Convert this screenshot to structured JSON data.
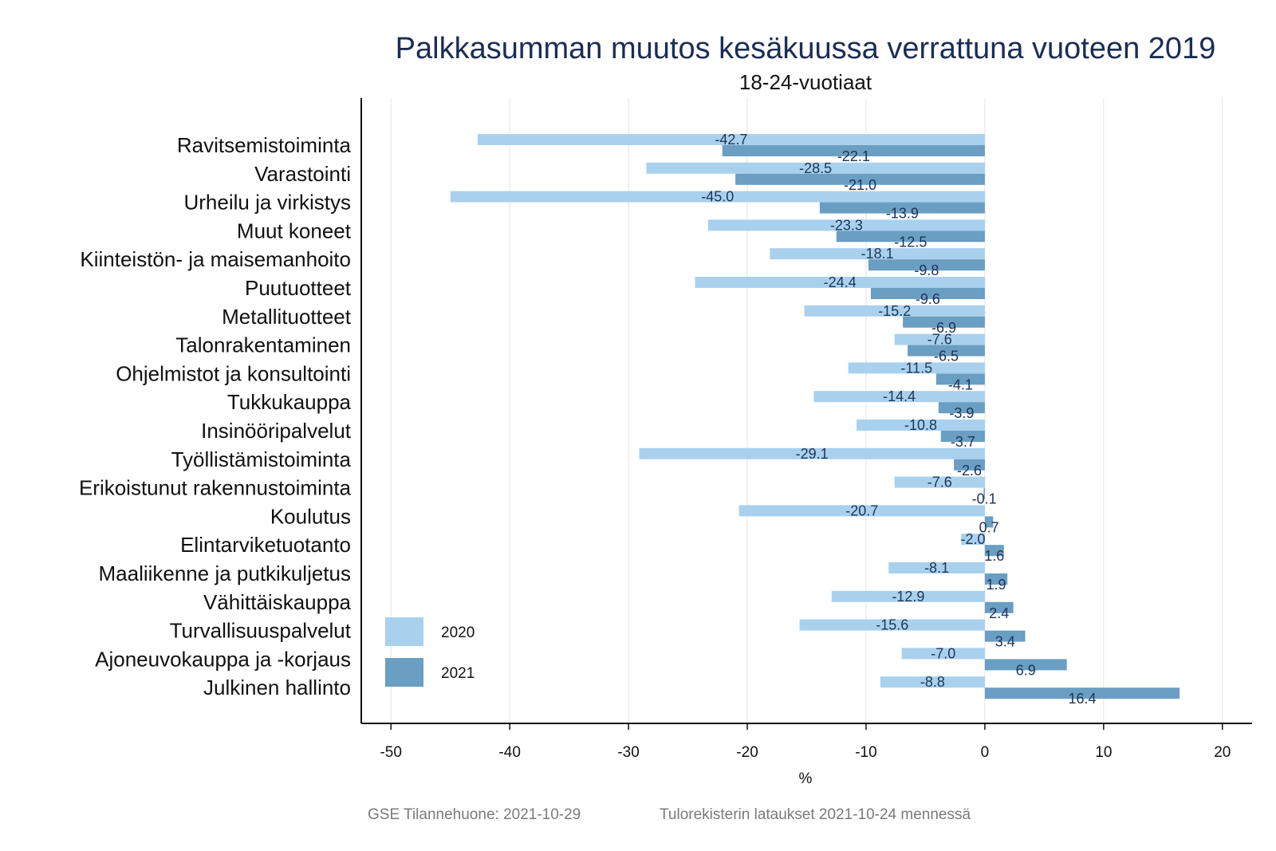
{
  "chart_data": {
    "type": "bar",
    "orientation": "horizontal",
    "title": "Palkkasumman muutos kesäkuussa verrattuna vuoteen 2019",
    "subtitle": "18-24-vuotiaat",
    "xlabel": "%",
    "xlim": [
      -52.5,
      22.5
    ],
    "xticks": [
      -50,
      -40,
      -30,
      -20,
      -10,
      0,
      10,
      20
    ],
    "grid": true,
    "legend_position": "bottom-left",
    "categories": [
      "Ravitsemistoiminta",
      "Varastointi",
      "Urheilu ja virkistys",
      "Muut koneet",
      "Kiinteistön- ja maisemanhoito",
      "Puutuotteet",
      "Metallituotteet",
      "Talonrakentaminen",
      "Ohjelmistot ja konsultointi",
      "Tukkukauppa",
      "Insinööripalvelut",
      "Työllistämistoiminta",
      "Erikoistunut rakennustoiminta",
      "Koulutus",
      "Elintarviketuotanto",
      "Maaliikenne ja putkikuljetus",
      "Vähittäiskauppa",
      "Turvallisuuspalvelut",
      "Ajoneuvokauppa ja -korjaus",
      "Julkinen hallinto"
    ],
    "series": [
      {
        "name": "2020",
        "color": "#a9d1ee",
        "values": [
          -42.7,
          -28.5,
          -45.0,
          -23.3,
          -18.1,
          -24.4,
          -15.2,
          -7.6,
          -11.5,
          -14.4,
          -10.8,
          -29.1,
          -7.6,
          -20.7,
          -2.0,
          -8.1,
          -12.9,
          -15.6,
          -7.0,
          -8.8
        ],
        "labels": [
          "-42.7",
          "-28.5",
          "-45.0",
          "-23.3",
          "-18.1",
          "-24.4",
          "-15.2",
          "-7.6",
          "-11.5",
          "-14.4",
          "-10.8",
          "-29.1",
          "-7.6",
          "-20.7",
          "-2.0",
          "-8.1",
          "-12.9",
          "-15.6",
          "-7.0",
          "-8.8"
        ]
      },
      {
        "name": "2021",
        "color": "#6a9ec2",
        "values": [
          -22.1,
          -21.0,
          -13.9,
          -12.5,
          -9.8,
          -9.6,
          -6.9,
          -6.5,
          -4.1,
          -3.9,
          -3.7,
          -2.6,
          -0.1,
          0.7,
          1.6,
          1.9,
          2.4,
          3.4,
          6.9,
          16.4
        ],
        "labels": [
          "-22.1",
          "-21.0",
          "-13.9",
          "-12.5",
          "-9.8",
          "-9.6",
          "-6.9",
          "-6.5",
          "-4.1",
          "-3.9",
          "-3.7",
          "-2.6",
          "-0.1",
          "0.7",
          "1.6",
          "1.9",
          "2.4",
          "3.4",
          "6.9",
          "16.4"
        ]
      }
    ]
  },
  "footer": {
    "source": "GSE Tilannehuone: 2021-10-29",
    "note": "Tulorekisterin lataukset 2021-10-24 mennessä"
  },
  "colors": {
    "title": "#1b2d55",
    "label": "#1c3557",
    "grid": "#e4e4e4",
    "axis": "#111111",
    "footer": "#7a7a7a"
  }
}
